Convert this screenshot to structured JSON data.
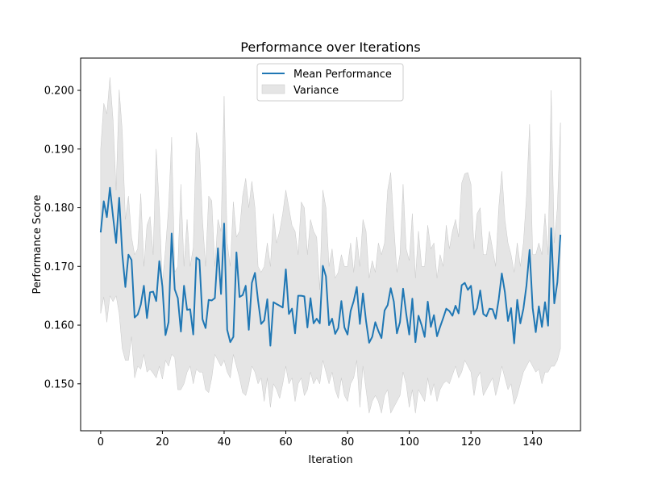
{
  "chart_data": {
    "type": "line",
    "title": "Performance over Iterations",
    "xlabel": "Iteration",
    "ylabel": "Performance Score",
    "xlim": [
      -6.5,
      155.5
    ],
    "ylim": [
      0.142,
      0.2055
    ],
    "x_ticks": [
      0,
      20,
      40,
      60,
      80,
      100,
      120,
      140
    ],
    "y_ticks": [
      0.15,
      0.16,
      0.17,
      0.18,
      0.19,
      0.2
    ],
    "x_tick_labels": [
      "0",
      "20",
      "40",
      "60",
      "80",
      "100",
      "120",
      "140"
    ],
    "y_tick_labels": [
      "0.150",
      "0.160",
      "0.170",
      "0.180",
      "0.190",
      "0.200"
    ],
    "grid": false,
    "legend_position": "upper-center",
    "colors": {
      "line": "#1f77b4",
      "band": "#d3d3d3",
      "band_edge": "#c8c8c8"
    },
    "series": [
      {
        "name": "Mean Performance",
        "kind": "line",
        "x": [
          0,
          1,
          2,
          3,
          4,
          5,
          6,
          7,
          8,
          9,
          10,
          11,
          12,
          13,
          14,
          15,
          16,
          17,
          18,
          19,
          20,
          21,
          22,
          23,
          24,
          25,
          26,
          27,
          28,
          29,
          30,
          31,
          32,
          33,
          34,
          35,
          36,
          37,
          38,
          39,
          40,
          41,
          42,
          43,
          44,
          45,
          46,
          47,
          48,
          49,
          50,
          51,
          52,
          53,
          54,
          55,
          56,
          57,
          58,
          59,
          60,
          61,
          62,
          63,
          64,
          65,
          66,
          67,
          68,
          69,
          70,
          71,
          72,
          73,
          74,
          75,
          76,
          77,
          78,
          79,
          80,
          81,
          82,
          83,
          84,
          85,
          86,
          87,
          88,
          89,
          90,
          91,
          92,
          93,
          94,
          95,
          96,
          97,
          98,
          99,
          100,
          101,
          102,
          103,
          104,
          105,
          106,
          107,
          108,
          109,
          110,
          111,
          112,
          113,
          114,
          115,
          116,
          117,
          118,
          119,
          120,
          121,
          122,
          123,
          124,
          125,
          126,
          127,
          128,
          129,
          130,
          131,
          132,
          133,
          134,
          135,
          136,
          137,
          138,
          139,
          140,
          141,
          142,
          143,
          144,
          145,
          146,
          147,
          148,
          149
        ],
        "y": [
          0.1758,
          0.1811,
          0.1784,
          0.1834,
          0.1785,
          0.174,
          0.1817,
          0.1721,
          0.1665,
          0.172,
          0.1711,
          0.1613,
          0.1618,
          0.1635,
          0.1667,
          0.1612,
          0.1656,
          0.1657,
          0.1641,
          0.1709,
          0.1666,
          0.1583,
          0.1605,
          0.1756,
          0.1661,
          0.1646,
          0.1589,
          0.1667,
          0.1626,
          0.1627,
          0.1584,
          0.1715,
          0.1711,
          0.161,
          0.1595,
          0.1643,
          0.1642,
          0.1646,
          0.1731,
          0.1653,
          0.1773,
          0.1592,
          0.1571,
          0.158,
          0.1724,
          0.1648,
          0.1651,
          0.1667,
          0.1592,
          0.1672,
          0.1689,
          0.1642,
          0.1602,
          0.1608,
          0.1644,
          0.1565,
          0.1639,
          0.1636,
          0.1633,
          0.163,
          0.1695,
          0.1619,
          0.1628,
          0.1586,
          0.165,
          0.165,
          0.1649,
          0.1596,
          0.1646,
          0.1603,
          0.1611,
          0.1603,
          0.1701,
          0.1683,
          0.16,
          0.1611,
          0.1585,
          0.1595,
          0.1641,
          0.1596,
          0.1584,
          0.1624,
          0.1641,
          0.1665,
          0.1602,
          0.1654,
          0.1607,
          0.157,
          0.158,
          0.1605,
          0.159,
          0.1578,
          0.1625,
          0.1634,
          0.1663,
          0.164,
          0.1586,
          0.1605,
          0.1662,
          0.162,
          0.1584,
          0.1645,
          0.1571,
          0.1616,
          0.16,
          0.158,
          0.164,
          0.1597,
          0.1617,
          0.1581,
          0.1597,
          0.1612,
          0.1628,
          0.1624,
          0.1616,
          0.1633,
          0.162,
          0.1668,
          0.1672,
          0.166,
          0.1667,
          0.1618,
          0.1629,
          0.1659,
          0.1619,
          0.1615,
          0.1628,
          0.1627,
          0.1611,
          0.1644,
          0.1688,
          0.1656,
          0.1607,
          0.1629,
          0.1569,
          0.1643,
          0.1603,
          0.1628,
          0.1668,
          0.1728,
          0.1629,
          0.1588,
          0.1632,
          0.1597,
          0.1639,
          0.1599,
          0.1765,
          0.1637,
          0.1673,
          0.1754
        ]
      },
      {
        "name": "Variance",
        "kind": "band",
        "x": [
          0,
          1,
          2,
          3,
          4,
          5,
          6,
          7,
          8,
          9,
          10,
          11,
          12,
          13,
          14,
          15,
          16,
          17,
          18,
          19,
          20,
          21,
          22,
          23,
          24,
          25,
          26,
          27,
          28,
          29,
          30,
          31,
          32,
          33,
          34,
          35,
          36,
          37,
          38,
          39,
          40,
          41,
          42,
          43,
          44,
          45,
          46,
          47,
          48,
          49,
          50,
          51,
          52,
          53,
          54,
          55,
          56,
          57,
          58,
          59,
          60,
          61,
          62,
          63,
          64,
          65,
          66,
          67,
          68,
          69,
          70,
          71,
          72,
          73,
          74,
          75,
          76,
          77,
          78,
          79,
          80,
          81,
          82,
          83,
          84,
          85,
          86,
          87,
          88,
          89,
          90,
          91,
          92,
          93,
          94,
          95,
          96,
          97,
          98,
          99,
          100,
          101,
          102,
          103,
          104,
          105,
          106,
          107,
          108,
          109,
          110,
          111,
          112,
          113,
          114,
          115,
          116,
          117,
          118,
          119,
          120,
          121,
          122,
          123,
          124,
          125,
          126,
          127,
          128,
          129,
          130,
          131,
          132,
          133,
          134,
          135,
          136,
          137,
          138,
          139,
          140,
          141,
          142,
          143,
          144,
          145,
          146,
          147,
          148,
          149
        ],
        "upper": [
          0.19,
          0.1978,
          0.196,
          0.2022,
          0.195,
          0.183,
          0.2001,
          0.193,
          0.178,
          0.182,
          0.175,
          0.172,
          0.173,
          0.1824,
          0.17,
          0.177,
          0.1785,
          0.172,
          0.19,
          0.18,
          0.167,
          0.173,
          0.18,
          0.192,
          0.169,
          0.17,
          0.184,
          0.17,
          0.178,
          0.17,
          0.1732,
          0.1928,
          0.19,
          0.178,
          0.17,
          0.182,
          0.1812,
          0.17,
          0.178,
          0.176,
          0.199,
          0.174,
          0.17,
          0.181,
          0.175,
          0.176,
          0.182,
          0.185,
          0.18,
          0.1845,
          0.18,
          0.17,
          0.169,
          0.17,
          0.174,
          0.17,
          0.179,
          0.174,
          0.176,
          0.179,
          0.183,
          0.18,
          0.177,
          0.176,
          0.172,
          0.181,
          0.18,
          0.172,
          0.178,
          0.176,
          0.175,
          0.166,
          0.183,
          0.18,
          0.17,
          0.173,
          0.168,
          0.169,
          0.172,
          0.17,
          0.17,
          0.174,
          0.169,
          0.175,
          0.17,
          0.178,
          0.176,
          0.168,
          0.171,
          0.169,
          0.174,
          0.172,
          0.174,
          0.183,
          0.186,
          0.177,
          0.169,
          0.172,
          0.184,
          0.173,
          0.171,
          0.179,
          0.168,
          0.176,
          0.17,
          0.17,
          0.177,
          0.173,
          0.174,
          0.168,
          0.172,
          0.17,
          0.177,
          0.173,
          0.176,
          0.178,
          0.175,
          0.1842,
          0.1858,
          0.186,
          0.184,
          0.173,
          0.179,
          0.18,
          0.172,
          0.172,
          0.176,
          0.173,
          0.17,
          0.18,
          0.1862,
          0.178,
          0.174,
          0.172,
          0.169,
          0.174,
          0.17,
          0.174,
          0.182,
          0.1942,
          0.172,
          0.172,
          0.174,
          0.172,
          0.179,
          0.172,
          0.2,
          0.174,
          0.18,
          0.1945
        ],
        "lower": [
          0.162,
          0.1648,
          0.1605,
          0.165,
          0.164,
          0.165,
          0.162,
          0.156,
          0.154,
          0.154,
          0.158,
          0.151,
          0.153,
          0.1525,
          0.155,
          0.152,
          0.1525,
          0.1518,
          0.151,
          0.153,
          0.1508,
          0.154,
          0.153,
          0.155,
          0.1545,
          0.149,
          0.149,
          0.15,
          0.152,
          0.153,
          0.15,
          0.1525,
          0.152,
          0.152,
          0.149,
          0.1485,
          0.151,
          0.155,
          0.154,
          0.153,
          0.154,
          0.152,
          0.151,
          0.155,
          0.153,
          0.151,
          0.1485,
          0.148,
          0.15,
          0.153,
          0.152,
          0.15,
          0.151,
          0.147,
          0.151,
          0.146,
          0.15,
          0.149,
          0.1475,
          0.15,
          0.153,
          0.15,
          0.151,
          0.147,
          0.15,
          0.151,
          0.148,
          0.149,
          0.152,
          0.15,
          0.151,
          0.15,
          0.154,
          0.152,
          0.15,
          0.152,
          0.149,
          0.1475,
          0.151,
          0.148,
          0.147,
          0.15,
          0.151,
          0.154,
          0.146,
          0.153,
          0.149,
          0.145,
          0.147,
          0.148,
          0.147,
          0.145,
          0.148,
          0.149,
          0.145,
          0.146,
          0.147,
          0.148,
          0.152,
          0.15,
          0.146,
          0.149,
          0.145,
          0.149,
          0.148,
          0.147,
          0.151,
          0.148,
          0.15,
          0.147,
          0.149,
          0.15,
          0.1505,
          0.15,
          0.1515,
          0.153,
          0.151,
          0.152,
          0.154,
          0.153,
          0.152,
          0.148,
          0.151,
          0.152,
          0.148,
          0.149,
          0.15,
          0.151,
          0.148,
          0.15,
          0.153,
          0.151,
          0.149,
          0.15,
          0.1465,
          0.148,
          0.15,
          0.152,
          0.153,
          0.154,
          0.153,
          0.152,
          0.1525,
          0.15,
          0.152,
          0.152,
          0.153,
          0.153,
          0.154,
          0.156
        ]
      }
    ]
  }
}
